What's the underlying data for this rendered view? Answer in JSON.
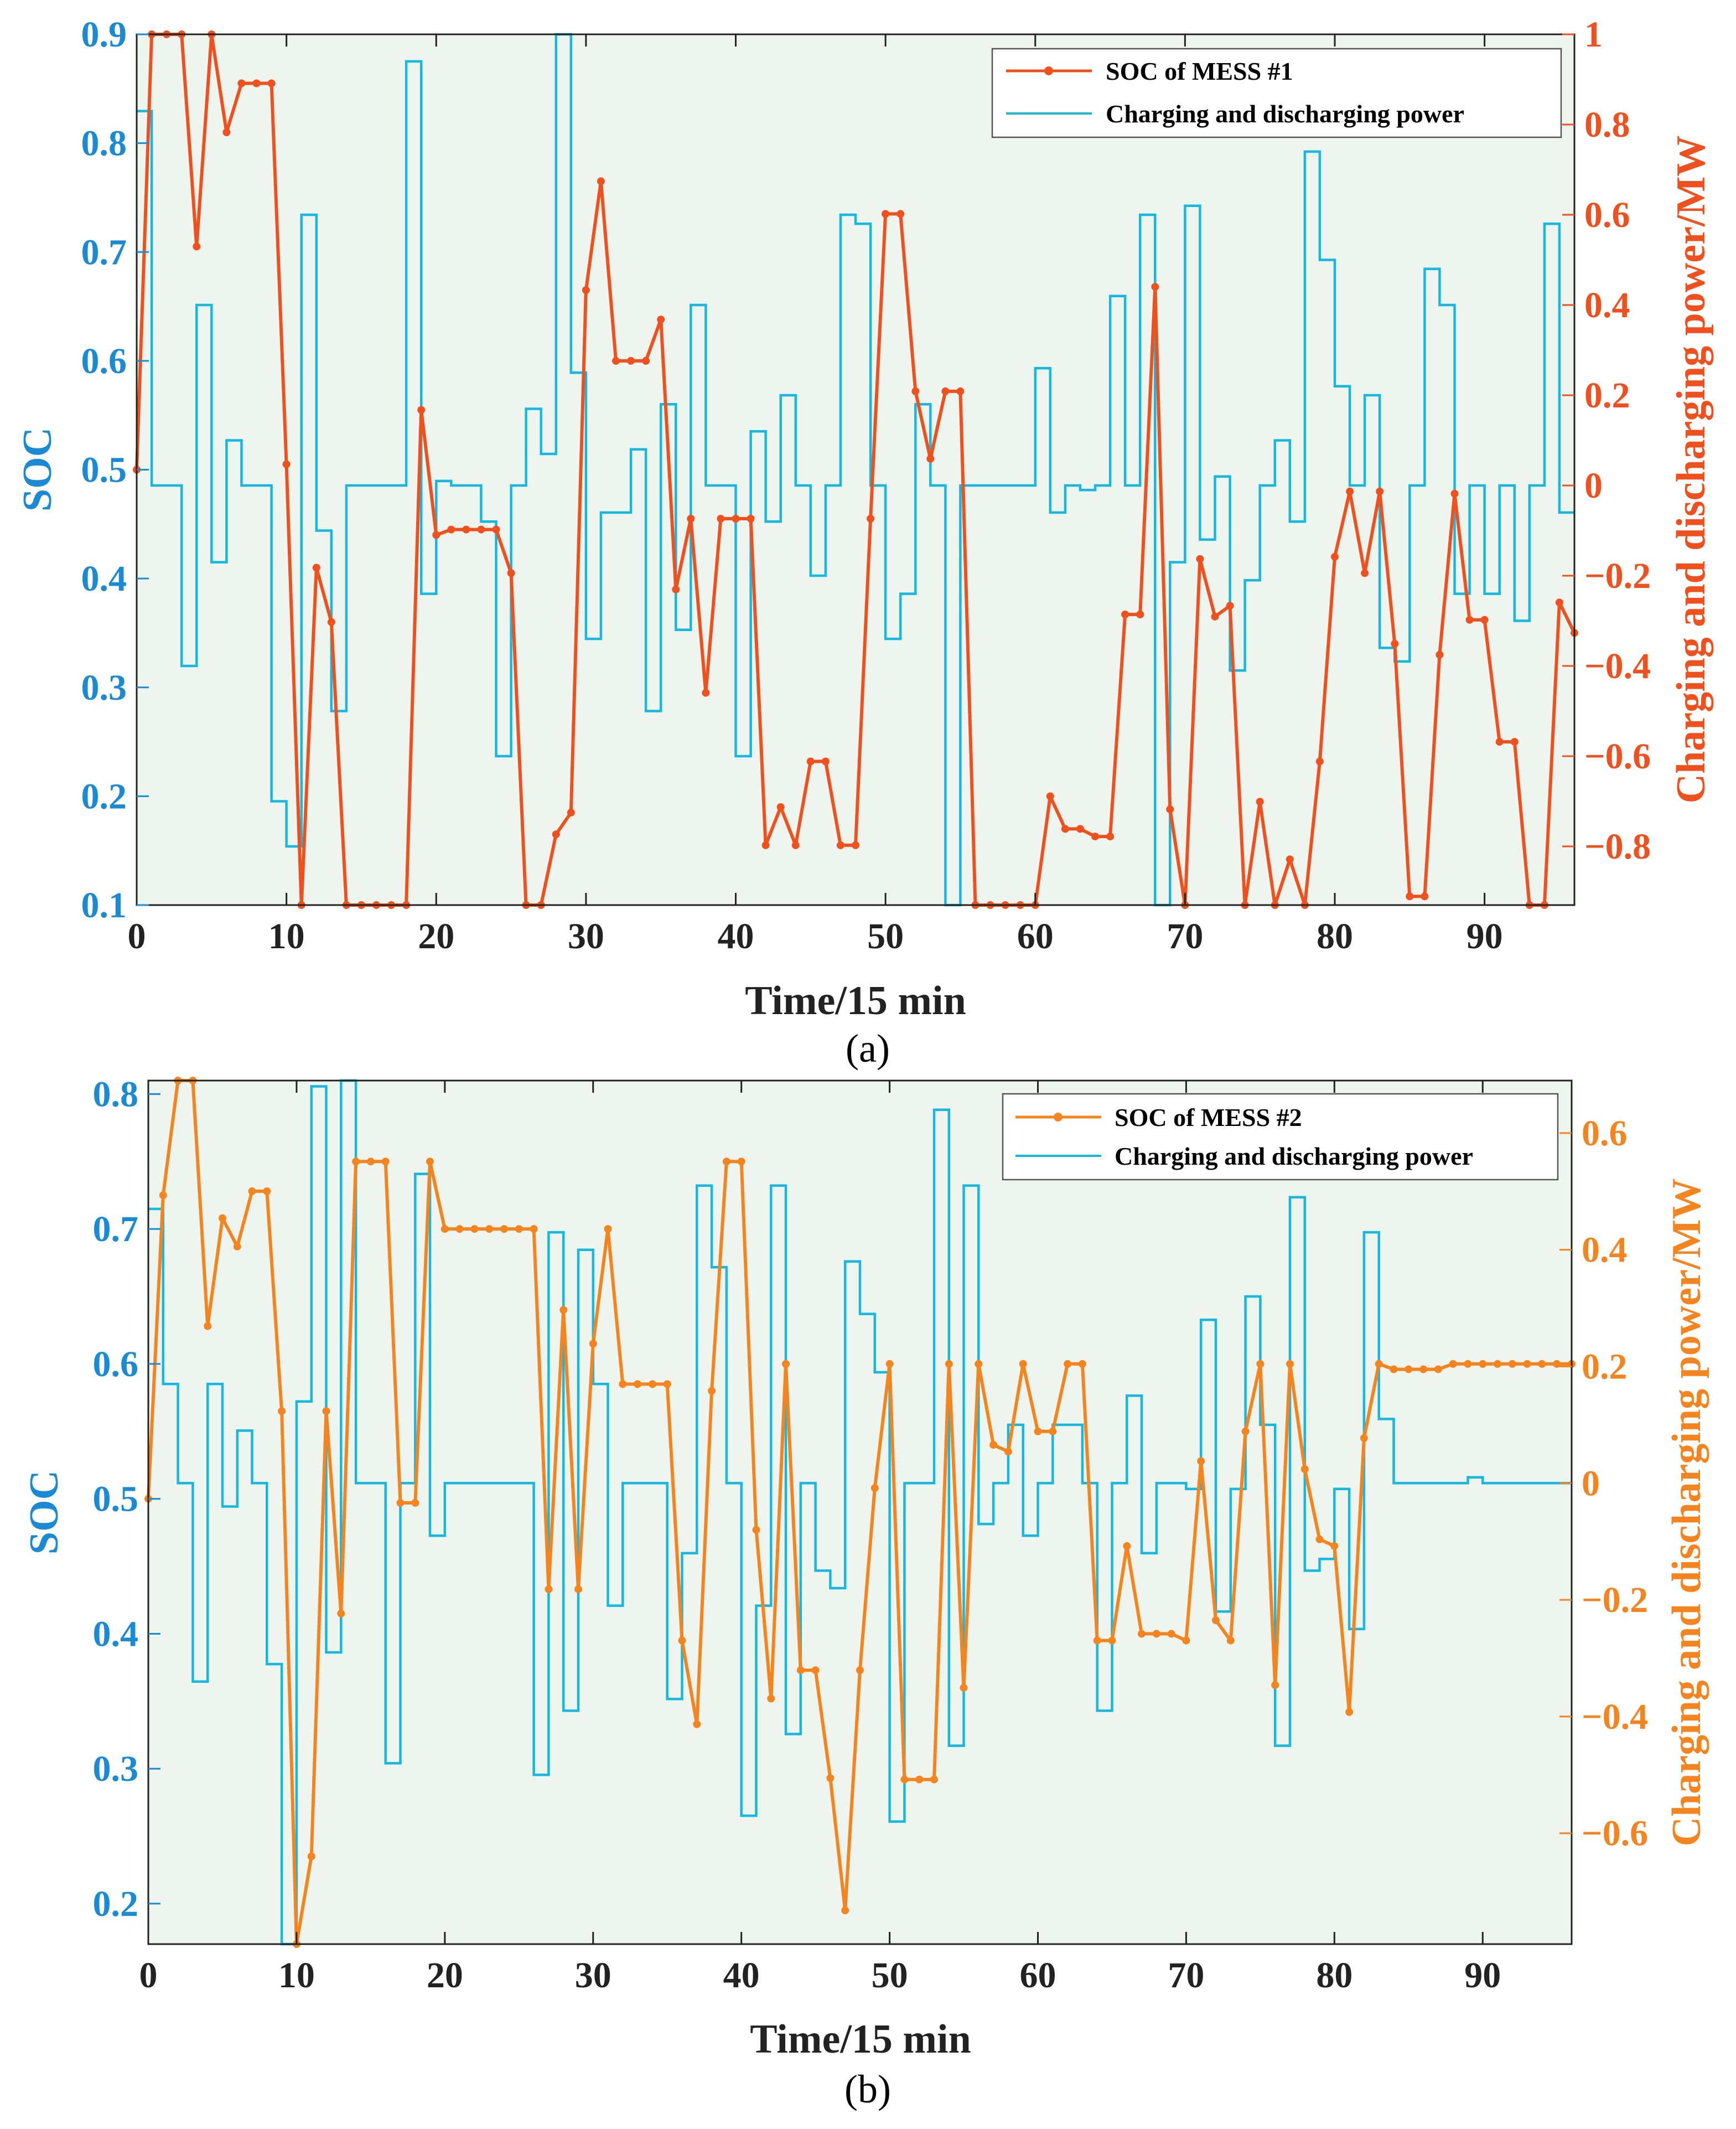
{
  "colors": {
    "soc_blue_axis": "#1a8ad4",
    "power_line": "#16b8e0",
    "soc1_line": "#f0501e",
    "soc2_line": "#f5841f",
    "plot_bg": "#eef5ee"
  },
  "chart_data": [
    {
      "type": "line",
      "panel_label": "(a)",
      "xlabel": "Time/15 min",
      "ylabel_left": "SOC",
      "ylabel_right": "Charging and discharging power/MW",
      "xlim": [
        0,
        96
      ],
      "ylim_left": [
        0.1,
        0.9
      ],
      "ylim_right": [
        -0.93,
        1.0
      ],
      "x_ticks": [
        0,
        10,
        20,
        30,
        40,
        50,
        60,
        70,
        80,
        90
      ],
      "y_ticks_left": [
        "0.1",
        "0.2",
        "0.3",
        "0.4",
        "0.5",
        "0.6",
        "0.7",
        "0.8",
        "0.9"
      ],
      "y_ticks_right": [
        "-0.8",
        "-0.6",
        "-0.4",
        "-0.2",
        "0",
        "0.2",
        "0.4",
        "0.6",
        "0.8",
        "1"
      ],
      "legend_position": "top-right",
      "series": [
        {
          "name": "SOC of MESS #1",
          "axis": "left",
          "style": "line-markers",
          "values": [
            0.5,
            0.9,
            0.9,
            0.9,
            0.705,
            0.9,
            0.81,
            0.855,
            0.855,
            0.855,
            0.505,
            0.1,
            0.41,
            0.36,
            0.1,
            0.1,
            0.1,
            0.1,
            0.1,
            0.555,
            0.44,
            0.445,
            0.445,
            0.445,
            0.445,
            0.405,
            0.1,
            0.1,
            0.165,
            0.185,
            0.665,
            0.765,
            0.6,
            0.6,
            0.6,
            0.638,
            0.39,
            0.455,
            0.295,
            0.455,
            0.455,
            0.455,
            0.155,
            0.19,
            0.155,
            0.232,
            0.232,
            0.155,
            0.155,
            0.455,
            0.735,
            0.735,
            0.572,
            0.51,
            0.572,
            0.572,
            0.1,
            0.1,
            0.1,
            0.1,
            0.1,
            0.2,
            0.17,
            0.17,
            0.163,
            0.163,
            0.367,
            0.367,
            0.668,
            0.188,
            0.1,
            0.418,
            0.365,
            0.375,
            0.1,
            0.195,
            0.1,
            0.142,
            0.1,
            0.232,
            0.42,
            0.48,
            0.405,
            0.48,
            0.34,
            0.108,
            0.108,
            0.33,
            0.478,
            0.362,
            0.362,
            0.25,
            0.25,
            0.1,
            0.1,
            0.378,
            0.35
          ]
        },
        {
          "name": "Charging and discharging power",
          "axis": "right",
          "style": "stairs",
          "values": [
            0.83,
            0.0,
            0.0,
            -0.4,
            0.4,
            -0.17,
            0.1,
            0.0,
            0.0,
            -0.7,
            -0.8,
            0.6,
            -0.1,
            -0.5,
            0.0,
            0.0,
            0.0,
            0.0,
            0.94,
            -0.24,
            0.01,
            0.0,
            0.0,
            -0.08,
            -0.6,
            0.0,
            0.17,
            0.07,
            1.0,
            0.25,
            -0.34,
            -0.06,
            -0.06,
            0.08,
            -0.5,
            0.18,
            -0.32,
            0.4,
            0.0,
            0.0,
            -0.6,
            0.12,
            -0.08,
            0.2,
            0.0,
            -0.2,
            0.0,
            0.6,
            0.58,
            0.0,
            -0.34,
            -0.24,
            0.18,
            0.0,
            -0.93,
            0.0,
            0.0,
            0.0,
            0.0,
            0.0,
            0.26,
            -0.06,
            0.0,
            -0.01,
            0.0,
            0.42,
            0.0,
            0.6,
            -0.93,
            -0.17,
            0.62,
            -0.12,
            0.02,
            -0.41,
            -0.21,
            0.0,
            0.1,
            -0.08,
            0.74,
            0.5,
            0.22,
            0.0,
            0.2,
            -0.36,
            -0.39,
            0.0,
            0.48,
            0.4,
            -0.24,
            0.0,
            -0.24,
            0.0,
            -0.3,
            0.0,
            0.58,
            -0.06
          ]
        }
      ]
    },
    {
      "type": "line",
      "panel_label": "(b)",
      "xlabel": "Time/15 min",
      "ylabel_left": "SOC",
      "ylabel_right": "Charging and discharging power/MW",
      "xlim": [
        0,
        96
      ],
      "ylim_left": [
        0.17,
        0.81
      ],
      "ylim_right": [
        -0.79,
        0.69
      ],
      "x_ticks": [
        0,
        10,
        20,
        30,
        40,
        50,
        60,
        70,
        80,
        90
      ],
      "y_ticks_left": [
        "0.2",
        "0.3",
        "0.4",
        "0.5",
        "0.6",
        "0.7",
        "0.8"
      ],
      "y_ticks_right": [
        "-0.6",
        "-0.4",
        "-0.2",
        "0",
        "0.2",
        "0.4",
        "0.6"
      ],
      "legend_position": "top-right",
      "series": [
        {
          "name": "SOC of MESS #2",
          "axis": "left",
          "style": "line-markers",
          "values": [
            0.5,
            0.725,
            0.81,
            0.81,
            0.628,
            0.708,
            0.687,
            0.728,
            0.728,
            0.565,
            0.17,
            0.235,
            0.565,
            0.415,
            0.75,
            0.75,
            0.75,
            0.497,
            0.497,
            0.75,
            0.7,
            0.7,
            0.7,
            0.7,
            0.7,
            0.7,
            0.7,
            0.433,
            0.64,
            0.433,
            0.615,
            0.7,
            0.585,
            0.585,
            0.585,
            0.585,
            0.395,
            0.333,
            0.58,
            0.75,
            0.75,
            0.477,
            0.352,
            0.6,
            0.373,
            0.373,
            0.293,
            0.195,
            0.373,
            0.508,
            0.6,
            0.292,
            0.292,
            0.292,
            0.6,
            0.36,
            0.6,
            0.54,
            0.535,
            0.6,
            0.55,
            0.55,
            0.6,
            0.6,
            0.395,
            0.395,
            0.465,
            0.4,
            0.4,
            0.4,
            0.395,
            0.528,
            0.41,
            0.395,
            0.55,
            0.6,
            0.362,
            0.6,
            0.522,
            0.47,
            0.465,
            0.342,
            0.545,
            0.6,
            0.596,
            0.596,
            0.596,
            0.596,
            0.6,
            0.6,
            0.6,
            0.6,
            0.6,
            0.6,
            0.6,
            0.6,
            0.6
          ]
        },
        {
          "name": "Charging and discharging power",
          "axis": "right",
          "style": "stairs",
          "values": [
            0.47,
            0.17,
            0.0,
            -0.34,
            0.17,
            -0.04,
            0.09,
            0.0,
            -0.31,
            -0.79,
            0.14,
            0.68,
            -0.29,
            0.69,
            0.0,
            0.0,
            -0.48,
            0.0,
            0.53,
            -0.09,
            0.0,
            0.0,
            0.0,
            0.0,
            0.0,
            0.0,
            -0.5,
            0.43,
            -0.39,
            0.4,
            0.17,
            -0.21,
            0.0,
            0.0,
            0.0,
            -0.37,
            -0.12,
            0.51,
            0.37,
            0.0,
            -0.57,
            -0.21,
            0.51,
            -0.43,
            0.0,
            -0.15,
            -0.18,
            0.38,
            0.29,
            0.19,
            -0.58,
            0.0,
            0.0,
            0.64,
            -0.45,
            0.51,
            -0.07,
            0.0,
            0.1,
            -0.09,
            0.0,
            0.1,
            0.1,
            0.0,
            -0.39,
            0.0,
            0.15,
            -0.12,
            0.0,
            0.0,
            -0.01,
            0.28,
            -0.22,
            -0.01,
            0.32,
            0.1,
            -0.45,
            0.49,
            -0.15,
            -0.13,
            -0.01,
            -0.25,
            0.43,
            0.11,
            0.0,
            0.0,
            0.0,
            0.0,
            0.0,
            0.01,
            0.0,
            0.0,
            0.0,
            0.0,
            0.0,
            0.0
          ]
        }
      ]
    }
  ]
}
